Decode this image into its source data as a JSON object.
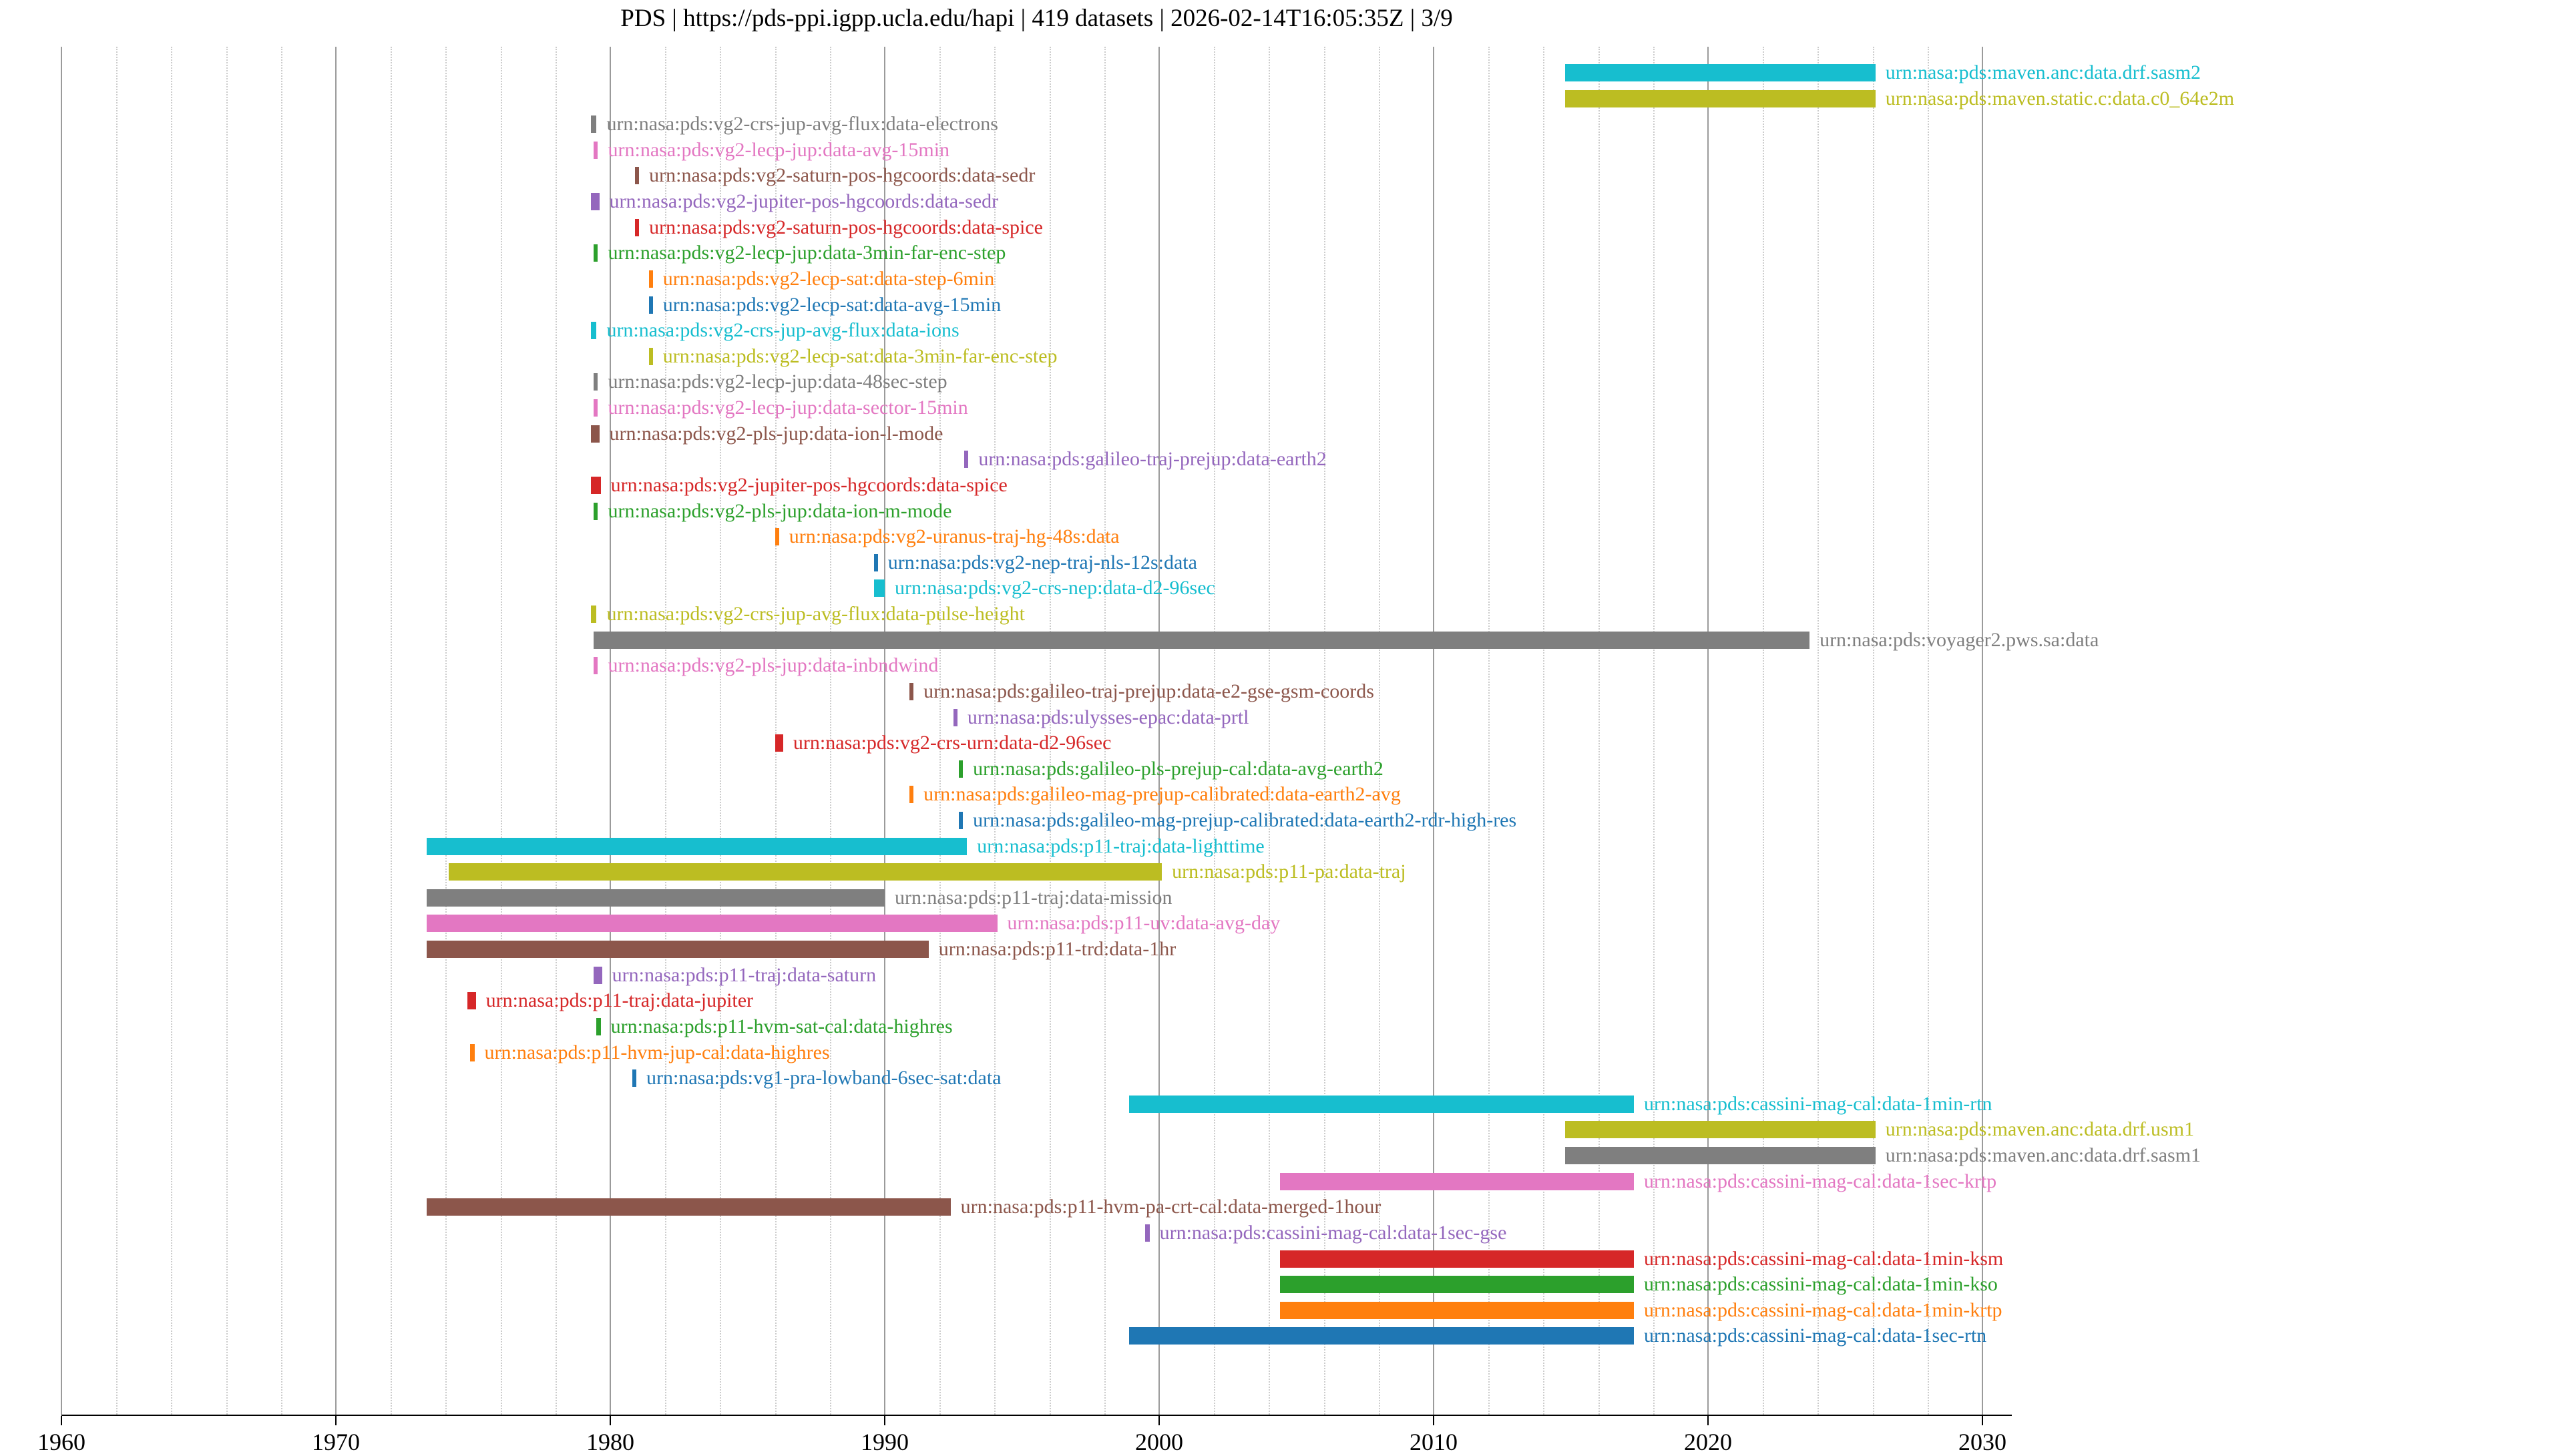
{
  "chart_data": {
    "type": "bar",
    "variant": "gantt-timeline",
    "title": "PDS | https://pds-ppi.igpp.ucla.edu/hapi | 419 datasets | 2026-02-14T16:05:35Z | 3/9",
    "xlabel": "",
    "ylabel": "",
    "xlim": [
      1960,
      2031.2
    ],
    "xticks": [
      1960,
      1970,
      1980,
      1990,
      2000,
      2010,
      2020,
      2030
    ],
    "xtick_labels": [
      "1960",
      "1970",
      "1980",
      "1990",
      "2000",
      "2010",
      "2020",
      "2030"
    ],
    "minor_grid_step_years": 2,
    "grid": "vertical",
    "legend": "none",
    "rows": [
      {
        "label": "urn:nasa:pds:maven.anc:data.drf.sasm2",
        "color": "#17becf",
        "start": 2014.8,
        "end": 2026.1
      },
      {
        "label": "urn:nasa:pds:maven.static.c:data.c0_64e2m",
        "color": "#bcbd22",
        "start": 2014.8,
        "end": 2026.1
      },
      {
        "label": "urn:nasa:pds:vg2-crs-jup-avg-flux:data-electrons",
        "color": "#7f7f7f",
        "start": 1979.3,
        "end": 1979.5
      },
      {
        "label": "urn:nasa:pds:vg2-lecp-jup:data-avg-15min",
        "color": "#e377c2",
        "start": 1979.4,
        "end": 1979.55
      },
      {
        "label": "urn:nasa:pds:vg2-saturn-pos-hgcoords:data-sedr",
        "color": "#8c564b",
        "start": 1980.9,
        "end": 1981.05
      },
      {
        "label": "urn:nasa:pds:vg2-jupiter-pos-hgcoords:data-sedr",
        "color": "#9467bd",
        "start": 1979.3,
        "end": 1979.6
      },
      {
        "label": "urn:nasa:pds:vg2-saturn-pos-hgcoords:data-spice",
        "color": "#d62728",
        "start": 1980.9,
        "end": 1981.05
      },
      {
        "label": "urn:nasa:pds:vg2-lecp-jup:data-3min-far-enc-step",
        "color": "#2ca02c",
        "start": 1979.4,
        "end": 1979.55
      },
      {
        "label": "urn:nasa:pds:vg2-lecp-sat:data-step-6min",
        "color": "#ff7f0e",
        "start": 1981.4,
        "end": 1981.55
      },
      {
        "label": "urn:nasa:pds:vg2-lecp-sat:data-avg-15min",
        "color": "#1f77b4",
        "start": 1981.4,
        "end": 1981.55
      },
      {
        "label": "urn:nasa:pds:vg2-crs-jup-avg-flux:data-ions",
        "color": "#17becf",
        "start": 1979.3,
        "end": 1979.5
      },
      {
        "label": "urn:nasa:pds:vg2-lecp-sat:data-3min-far-enc-step",
        "color": "#bcbd22",
        "start": 1981.4,
        "end": 1981.55
      },
      {
        "label": "urn:nasa:pds:vg2-lecp-jup:data-48sec-step",
        "color": "#7f7f7f",
        "start": 1979.4,
        "end": 1979.55
      },
      {
        "label": "urn:nasa:pds:vg2-lecp-jup:data-sector-15min",
        "color": "#e377c2",
        "start": 1979.4,
        "end": 1979.55
      },
      {
        "label": "urn:nasa:pds:vg2-pls-jup:data-ion-l-mode",
        "color": "#8c564b",
        "start": 1979.3,
        "end": 1979.6
      },
      {
        "label": "urn:nasa:pds:galileo-traj-prejup:data-earth2",
        "color": "#9467bd",
        "start": 1992.9,
        "end": 1993.05
      },
      {
        "label": "urn:nasa:pds:vg2-jupiter-pos-hgcoords:data-spice",
        "color": "#d62728",
        "start": 1979.3,
        "end": 1979.65
      },
      {
        "label": "urn:nasa:pds:vg2-pls-jup:data-ion-m-mode",
        "color": "#2ca02c",
        "start": 1979.4,
        "end": 1979.55
      },
      {
        "label": "urn:nasa:pds:vg2-uranus-traj-hg-48s:data",
        "color": "#ff7f0e",
        "start": 1986.0,
        "end": 1986.15
      },
      {
        "label": "urn:nasa:pds:vg2-nep-traj-nls-12s:data",
        "color": "#1f77b4",
        "start": 1989.6,
        "end": 1989.75
      },
      {
        "label": "urn:nasa:pds:vg2-crs-nep:data-d2-96sec",
        "color": "#17becf",
        "start": 1989.6,
        "end": 1990.0
      },
      {
        "label": "urn:nasa:pds:vg2-crs-jup-avg-flux:data-pulse-height",
        "color": "#bcbd22",
        "start": 1979.3,
        "end": 1979.5
      },
      {
        "label": "urn:nasa:pds:voyager2.pws.sa:data",
        "color": "#7f7f7f",
        "start": 1979.4,
        "end": 2023.7
      },
      {
        "label": "urn:nasa:pds:vg2-pls-jup:data-inbndwind",
        "color": "#e377c2",
        "start": 1979.4,
        "end": 1979.55
      },
      {
        "label": "urn:nasa:pds:galileo-traj-prejup:data-e2-gse-gsm-coords",
        "color": "#8c564b",
        "start": 1990.9,
        "end": 1991.05
      },
      {
        "label": "urn:nasa:pds:ulysses-epac:data-prtl",
        "color": "#9467bd",
        "start": 1992.5,
        "end": 1992.65
      },
      {
        "label": "urn:nasa:pds:vg2-crs-urn:data-d2-96sec",
        "color": "#d62728",
        "start": 1986.0,
        "end": 1986.3
      },
      {
        "label": "urn:nasa:pds:galileo-pls-prejup-cal:data-avg-earth2",
        "color": "#2ca02c",
        "start": 1992.7,
        "end": 1992.85
      },
      {
        "label": "urn:nasa:pds:galileo-mag-prejup-calibrated:data-earth2-avg",
        "color": "#ff7f0e",
        "start": 1990.9,
        "end": 1991.05
      },
      {
        "label": "urn:nasa:pds:galileo-mag-prejup-calibrated:data-earth2-rdr-high-res",
        "color": "#1f77b4",
        "start": 1992.7,
        "end": 1992.85
      },
      {
        "label": "urn:nasa:pds:p11-traj:data-lighttime",
        "color": "#17becf",
        "start": 1973.3,
        "end": 1993.0
      },
      {
        "label": "urn:nasa:pds:p11-pa:data-traj",
        "color": "#bcbd22",
        "start": 1974.1,
        "end": 2000.1
      },
      {
        "label": "urn:nasa:pds:p11-traj:data-mission",
        "color": "#7f7f7f",
        "start": 1973.3,
        "end": 1990.0
      },
      {
        "label": "urn:nasa:pds:p11-uv:data-avg-day",
        "color": "#e377c2",
        "start": 1973.3,
        "end": 1994.1
      },
      {
        "label": "urn:nasa:pds:p11-trd:data-1hr",
        "color": "#8c564b",
        "start": 1973.3,
        "end": 1991.6
      },
      {
        "label": "urn:nasa:pds:p11-traj:data-saturn",
        "color": "#9467bd",
        "start": 1979.4,
        "end": 1979.7
      },
      {
        "label": "urn:nasa:pds:p11-traj:data-jupiter",
        "color": "#d62728",
        "start": 1974.8,
        "end": 1975.1
      },
      {
        "label": "urn:nasa:pds:p11-hvm-sat-cal:data-highres",
        "color": "#2ca02c",
        "start": 1979.5,
        "end": 1979.65
      },
      {
        "label": "urn:nasa:pds:p11-hvm-jup-cal:data-highres",
        "color": "#ff7f0e",
        "start": 1974.9,
        "end": 1975.05
      },
      {
        "label": "urn:nasa:pds:vg1-pra-lowband-6sec-sat:data",
        "color": "#1f77b4",
        "start": 1980.8,
        "end": 1980.95
      },
      {
        "label": "urn:nasa:pds:cassini-mag-cal:data-1min-rtn",
        "color": "#17becf",
        "start": 1998.9,
        "end": 2017.3
      },
      {
        "label": "urn:nasa:pds:maven.anc:data.drf.usm1",
        "color": "#bcbd22",
        "start": 2014.8,
        "end": 2026.1
      },
      {
        "label": "urn:nasa:pds:maven.anc:data.drf.sasm1",
        "color": "#7f7f7f",
        "start": 2014.8,
        "end": 2026.1
      },
      {
        "label": "urn:nasa:pds:cassini-mag-cal:data-1sec-krtp",
        "color": "#e377c2",
        "start": 2004.4,
        "end": 2017.3
      },
      {
        "label": "urn:nasa:pds:p11-hvm-pa-crt-cal:data-merged-1hour",
        "color": "#8c564b",
        "start": 1973.3,
        "end": 1992.4
      },
      {
        "label": "urn:nasa:pds:cassini-mag-cal:data-1sec-gse",
        "color": "#9467bd",
        "start": 1999.5,
        "end": 1999.65
      },
      {
        "label": "urn:nasa:pds:cassini-mag-cal:data-1min-ksm",
        "color": "#d62728",
        "start": 2004.4,
        "end": 2017.3
      },
      {
        "label": "urn:nasa:pds:cassini-mag-cal:data-1min-kso",
        "color": "#2ca02c",
        "start": 2004.4,
        "end": 2017.3
      },
      {
        "label": "urn:nasa:pds:cassini-mag-cal:data-1min-krtp",
        "color": "#ff7f0e",
        "start": 2004.4,
        "end": 2017.3
      },
      {
        "label": "urn:nasa:pds:cassini-mag-cal:data-1sec-rtn",
        "color": "#1f77b4",
        "start": 1998.9,
        "end": 2017.3
      }
    ]
  }
}
